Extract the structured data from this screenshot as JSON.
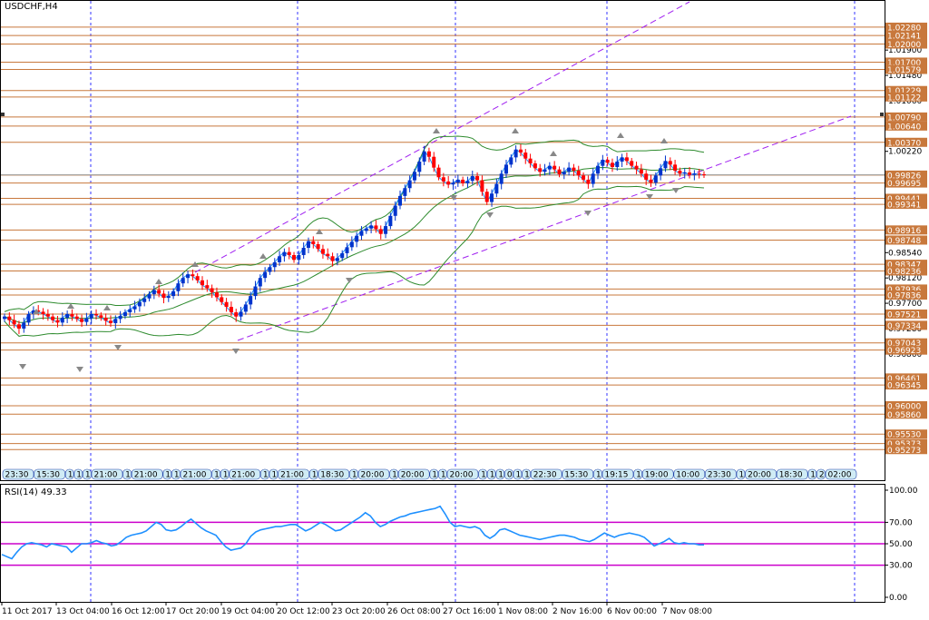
{
  "symbol": "USDCHF,H4",
  "rsi_label": "RSI(14) 49.33",
  "colors": {
    "grid": "#3333ff",
    "hline": "#c8783c",
    "badge": "#c8783c",
    "bull": "#0033cc",
    "bear": "#ff0000",
    "bands": "#2e8b2e",
    "ma": "#1e90ff",
    "channel": "#a020f0",
    "rsi": "#1e90ff",
    "rsi_level": "#cc00cc",
    "axis": "#0000aa"
  },
  "chart_data": [
    {
      "type": "candlestick",
      "title": "USDCHF,H4",
      "ylim": [
        0.9478,
        1.0258
      ],
      "price_scale_labels": [
        "1.01900",
        "1.01480",
        "1.01060",
        "1.00220",
        "0.98540",
        "0.98120",
        "0.97700",
        "0.97280",
        "0.96860"
      ],
      "level_labels": [
        "1.02280",
        "1.02141",
        "1.02000",
        "1.01700",
        "1.01579",
        "1.01229",
        "1.01122",
        "1.00790",
        "1.00640",
        "1.00370",
        "0.99826",
        "0.99695",
        "0.99441",
        "0.99341",
        "0.98916",
        "0.98748",
        "0.98347",
        "0.98236",
        "0.97936",
        "0.97836",
        "0.97521",
        "0.97334",
        "0.97043",
        "0.96923",
        "0.96461",
        "0.96345",
        "0.96000",
        "0.95860",
        "0.95530",
        "0.95373",
        "0.95273"
      ],
      "time_labels": [
        "11 Oct 2017",
        "13 Oct 04:00",
        "16 Oct 12:00",
        "17 Oct 20:00",
        "19 Oct 04:00",
        "20 Oct 12:00",
        "23 Oct 20:00",
        "26 Oct 08:00",
        "27 Oct 16:00",
        "1 Nov 08:00",
        "2 Nov 16:00",
        "6 Nov 00:00",
        "7 Nov 08:00"
      ],
      "session_labels": [
        "23:30",
        "15:30",
        "1",
        "1",
        "1",
        "21:00",
        "1",
        "21:00",
        "1",
        "1",
        "21:00",
        "1",
        "1",
        "21:00",
        "1",
        "1",
        "21:00",
        "1",
        "18:30",
        "1",
        "20:00",
        "1",
        "20:00",
        "1",
        "1",
        "20:00",
        "1",
        "1",
        "1",
        "0",
        "1",
        "1",
        "22:30",
        "15:30",
        "1",
        "19:15",
        "1",
        "19:00",
        "10:00",
        "23:30",
        "1",
        "20:00",
        "18:30",
        "1",
        "2",
        "02:00"
      ],
      "closes": [
        0.9748,
        0.9742,
        0.9735,
        0.9728,
        0.9738,
        0.9752,
        0.9758,
        0.9756,
        0.9752,
        0.9748,
        0.9742,
        0.9738,
        0.9746,
        0.9752,
        0.9748,
        0.9744,
        0.9739,
        0.9745,
        0.9752,
        0.975,
        0.9746,
        0.9741,
        0.9737,
        0.9744,
        0.9749,
        0.9755,
        0.976,
        0.9765,
        0.9772,
        0.9778,
        0.9785,
        0.9792,
        0.9786,
        0.9779,
        0.9782,
        0.979,
        0.9803,
        0.9812,
        0.9818,
        0.9815,
        0.9808,
        0.98,
        0.9795,
        0.9788,
        0.978,
        0.9772,
        0.9764,
        0.9755,
        0.9748,
        0.9756,
        0.9768,
        0.9782,
        0.9798,
        0.9812,
        0.9822,
        0.983,
        0.9838,
        0.9848,
        0.9855,
        0.985,
        0.9842,
        0.985,
        0.9862,
        0.9873,
        0.9868,
        0.986,
        0.9852,
        0.9848,
        0.984,
        0.9845,
        0.9853,
        0.9863,
        0.9872,
        0.9882,
        0.989,
        0.9894,
        0.9899,
        0.9893,
        0.9885,
        0.9898,
        0.9915,
        0.9932,
        0.9948,
        0.9961,
        0.9974,
        0.9988,
        1.0005,
        1.0022,
        1.0013,
        0.9995,
        0.9979,
        0.9972,
        0.9967,
        0.997,
        0.9975,
        0.9969,
        0.9973,
        0.9981,
        0.9974,
        0.9955,
        0.9938,
        0.9952,
        0.9968,
        0.9985,
        1.0,
        1.0012,
        1.0025,
        1.002,
        1.001,
        1.0002,
        0.9994,
        0.9988,
        0.9992,
        0.9998,
        0.9992,
        0.9984,
        0.9988,
        0.9995,
        0.999,
        0.9982,
        0.9975,
        0.9968,
        0.9985,
        0.9998,
        1.0008,
        1.0003,
        0.9996,
        1.0005,
        1.0012,
        1.0006,
        0.9998,
        0.9992,
        0.9985,
        0.9975,
        0.997,
        0.9982,
        0.9994,
        1.0006,
        1.0,
        0.999,
        0.9985,
        0.9987,
        0.9983,
        0.9985,
        0.9984,
        0.9983
      ]
    },
    {
      "type": "line",
      "title": "RSI(14) 49.33",
      "ylim": [
        0,
        100
      ],
      "tick_labels": [
        "100.00",
        "70.00",
        "50.00",
        "30.00",
        "0.00"
      ],
      "levels": [
        70,
        50,
        30
      ],
      "values": [
        40,
        38,
        36,
        42,
        47,
        50,
        51,
        50,
        49,
        47,
        50,
        49,
        48,
        47,
        42,
        46,
        50,
        50,
        51,
        53,
        51,
        50,
        48,
        49,
        52,
        56,
        58,
        59,
        60,
        62,
        66,
        70,
        68,
        63,
        62,
        63,
        66,
        70,
        73,
        69,
        65,
        62,
        60,
        58,
        52,
        47,
        44,
        45,
        46,
        50,
        57,
        61,
        63,
        64,
        65,
        66,
        66,
        67,
        68,
        68,
        65,
        62,
        64,
        67,
        70,
        68,
        65,
        62,
        63,
        66,
        69,
        72,
        75,
        79,
        76,
        70,
        66,
        68,
        71,
        73,
        75,
        76,
        78,
        79,
        80,
        81,
        82,
        83,
        85,
        78,
        70,
        66,
        67,
        66,
        65,
        66,
        64,
        58,
        55,
        58,
        63,
        64,
        62,
        60,
        58,
        57,
        56,
        55,
        54,
        55,
        56,
        57,
        58,
        58,
        57,
        56,
        54,
        53,
        52,
        54,
        57,
        60,
        58,
        56,
        58,
        59,
        60,
        59,
        58,
        56,
        52,
        48,
        50,
        52,
        55,
        51,
        50,
        51,
        50,
        50,
        49,
        49
      ]
    }
  ]
}
